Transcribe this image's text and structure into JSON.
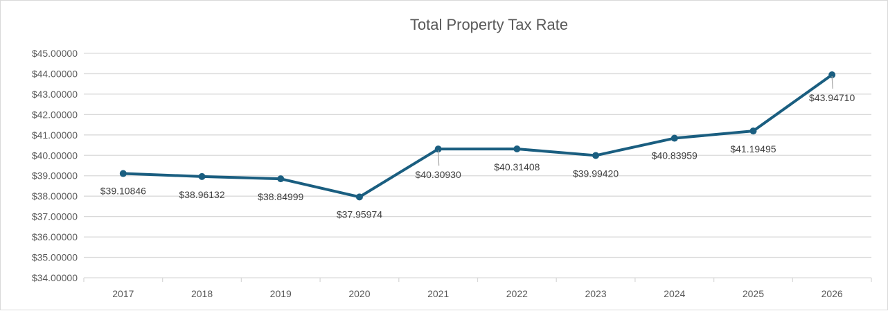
{
  "chart_data": {
    "type": "line",
    "title": "Total Property Tax Rate",
    "xlabel": "",
    "ylabel": "",
    "categories": [
      "2017",
      "2018",
      "2019",
      "2020",
      "2021",
      "2022",
      "2023",
      "2024",
      "2025",
      "2026"
    ],
    "values": [
      39.10846,
      38.96132,
      38.84999,
      37.95974,
      40.3093,
      40.31408,
      39.9942,
      40.83959,
      41.19495,
      43.9471
    ],
    "data_labels": [
      "$39.10846",
      "$38.96132",
      "$38.84999",
      "$37.95974",
      "$40.30930",
      "$40.31408",
      "$39.99420",
      "$40.83959",
      "$41.19495",
      "$43.94710"
    ],
    "ylim": [
      34,
      45
    ],
    "y_ticks": [
      "$34.00000",
      "$35.00000",
      "$36.00000",
      "$37.00000",
      "$38.00000",
      "$39.00000",
      "$40.00000",
      "$41.00000",
      "$42.00000",
      "$43.00000",
      "$44.00000",
      "$45.00000"
    ],
    "grid": true,
    "legend": "none",
    "line_color": "#1a5e80"
  }
}
